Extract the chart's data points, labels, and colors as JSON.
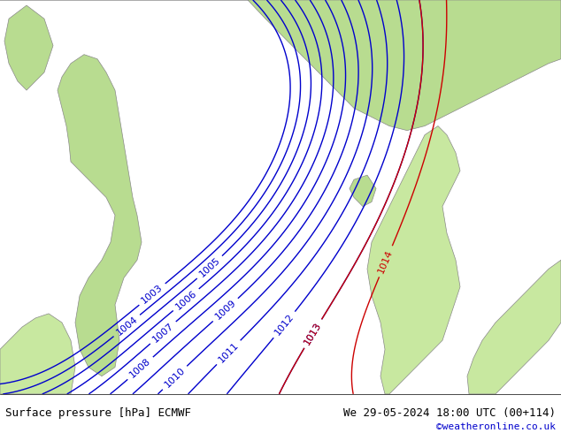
{
  "title_left": "Surface pressure [hPa] ECMWF",
  "title_right": "We 29-05-2024 18:00 UTC (00+114)",
  "credit": "©weatheronline.co.uk",
  "footer_bg": "#ffffff",
  "map_bg_ocean": "#d8e8f0",
  "map_bg_land_light": "#c8e6a0",
  "map_bg_land_dark": "#a8d080",
  "contour_blue_color": "#0000cc",
  "contour_red_color": "#cc0000",
  "contour_black_color": "#000000",
  "label_fontsize": 8,
  "footer_fontsize": 9,
  "credit_fontsize": 8,
  "credit_color": "#0000cc"
}
